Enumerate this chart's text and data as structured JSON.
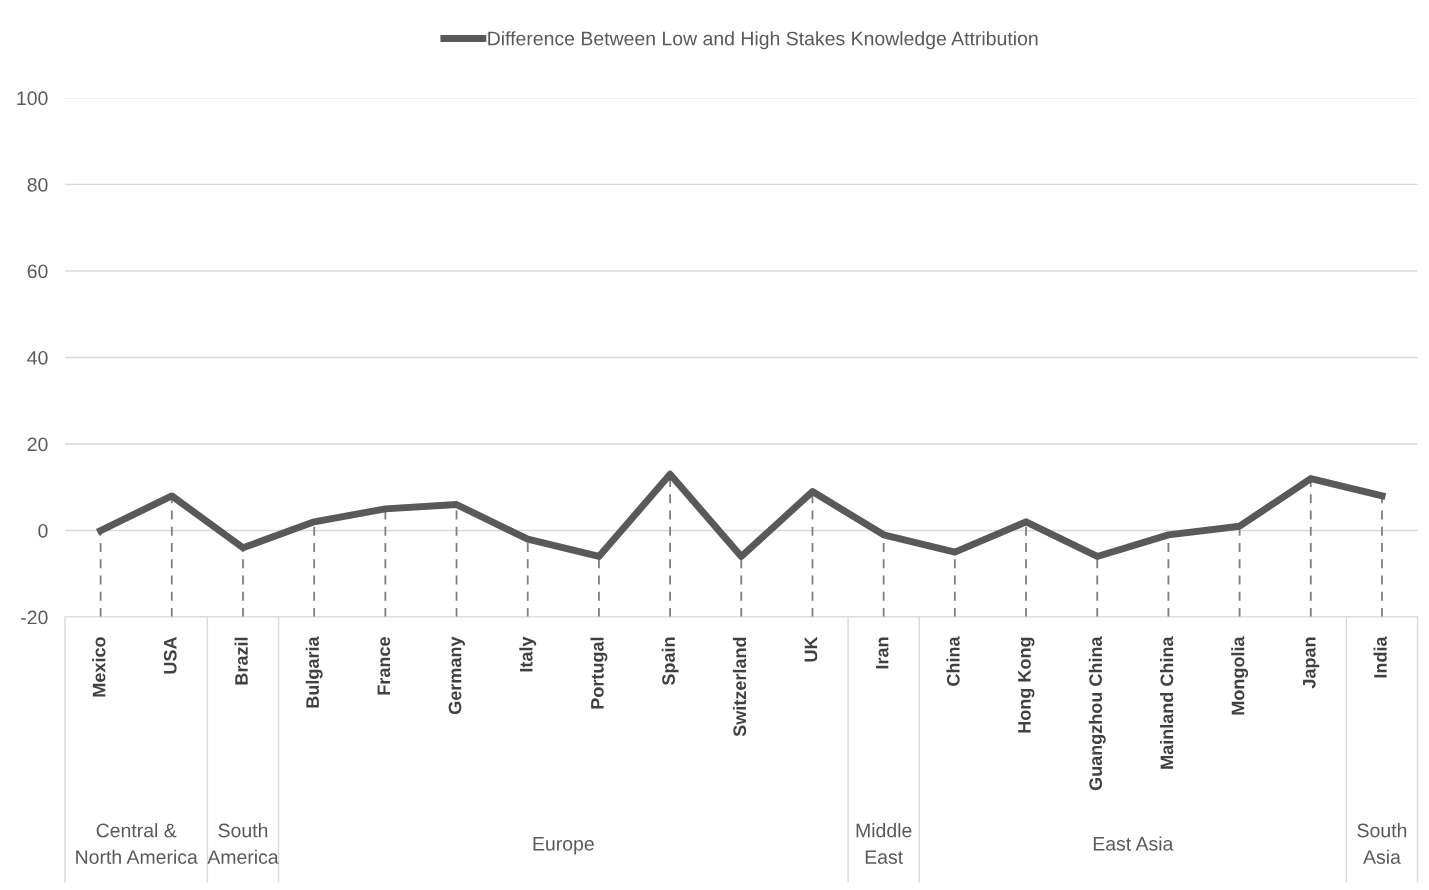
{
  "chart_data": {
    "type": "line",
    "categories": [
      "Mexico",
      "USA",
      "Brazil",
      "Bulgaria",
      "France",
      "Germany",
      "Italy",
      "Portugal",
      "Spain",
      "Switzerland",
      "UK",
      "Iran",
      "China",
      "Hong Kong",
      "Guangzhou China",
      "Mainland China",
      "Mongolia",
      "Japan",
      "India"
    ],
    "series": [
      {
        "name": "Difference Between Low and High Stakes Knowledge Attribution",
        "color": "#595959",
        "values": [
          0,
          8,
          -4,
          2,
          5,
          6,
          -2,
          -6,
          13,
          -6,
          9,
          -1,
          -5,
          2,
          -6,
          -1,
          1,
          12,
          8
        ],
        "errors": [
          [
            -20,
            0
          ],
          [
            -20,
            8
          ],
          [
            -20,
            -4
          ],
          [
            -20,
            2
          ],
          [
            -20,
            5
          ],
          [
            -20,
            6
          ],
          [
            -20,
            -2
          ],
          [
            -20,
            -6
          ],
          [
            -20,
            13
          ],
          [
            -20,
            -6
          ],
          [
            -20,
            9
          ],
          [
            -20,
            -1
          ],
          [
            -20,
            -5
          ],
          [
            -20,
            2
          ],
          [
            -20,
            -6
          ],
          [
            -20,
            -1
          ],
          [
            -20,
            1
          ],
          [
            -20,
            12
          ],
          [
            -20,
            8
          ]
        ]
      }
    ],
    "ylim": [
      -20,
      100
    ],
    "yticks": [
      -20,
      0,
      20,
      40,
      60,
      80,
      100
    ],
    "grid": "y",
    "legend": "top",
    "marker": "none",
    "line_style": "solid",
    "annotations": [
      "Central & North America",
      "South America",
      "Europe",
      "Middle East",
      "East Asia",
      "South Asia"
    ]
  }
}
